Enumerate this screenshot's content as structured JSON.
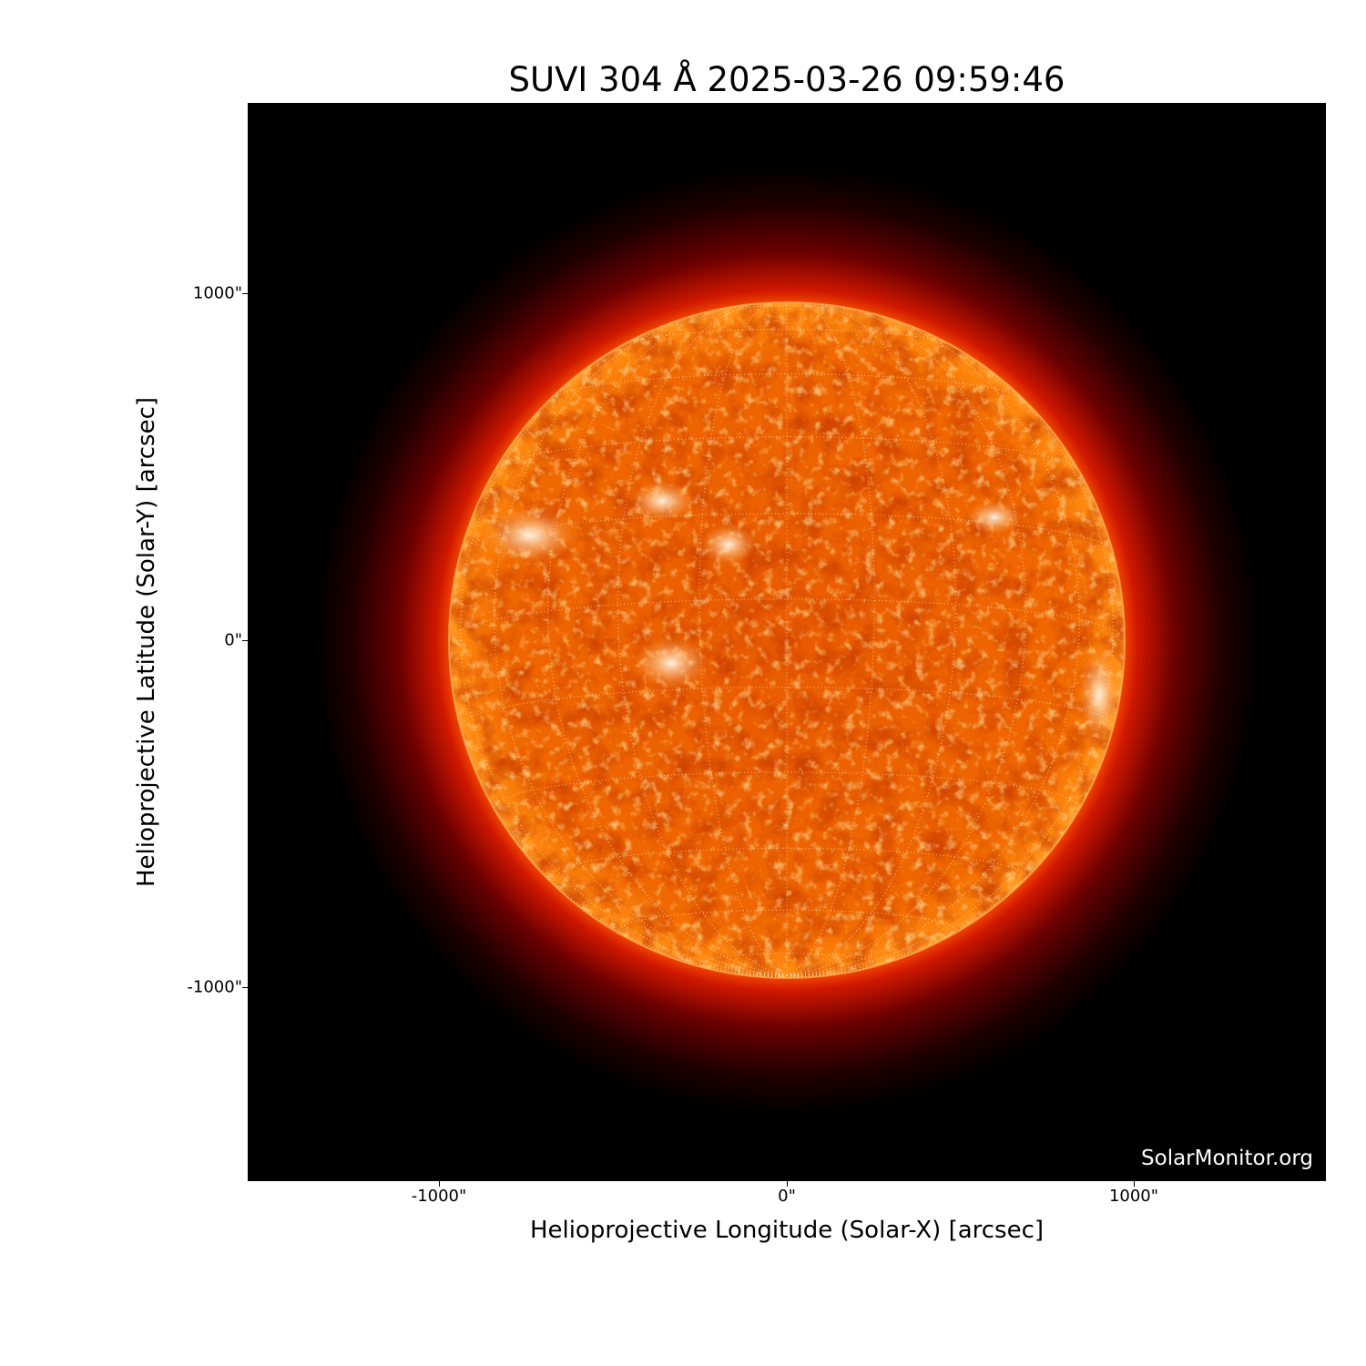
{
  "title": "SUVI 304 Å 2025-03-26 09:59:46",
  "watermark": "SolarMonitor.org",
  "xaxis": {
    "label": "Helioprojective Longitude (Solar-X) [arcsec]",
    "ticks": [
      {
        "value": -1000,
        "label": "-1000\""
      },
      {
        "value": 0,
        "label": "0\""
      },
      {
        "value": 1000,
        "label": "1000\""
      }
    ],
    "range": [
      -1550,
      1550
    ]
  },
  "yaxis": {
    "label": "Helioprojective Latitude (Solar-Y) [arcsec]",
    "ticks": [
      {
        "value": 1000,
        "label": "1000\""
      },
      {
        "value": 0,
        "label": "0\""
      },
      {
        "value": -1000,
        "label": "-1000\""
      }
    ],
    "range": [
      -1550,
      1550
    ]
  },
  "image": {
    "instrument": "SUVI",
    "wavelength": "304 Å",
    "colormap": [
      "#000000",
      "#8b0000",
      "#e03000",
      "#ff7a00",
      "#ffd9a0",
      "#ffffff"
    ],
    "solar_radius_arcsec": 975,
    "grid_spacing_deg": 15
  }
}
